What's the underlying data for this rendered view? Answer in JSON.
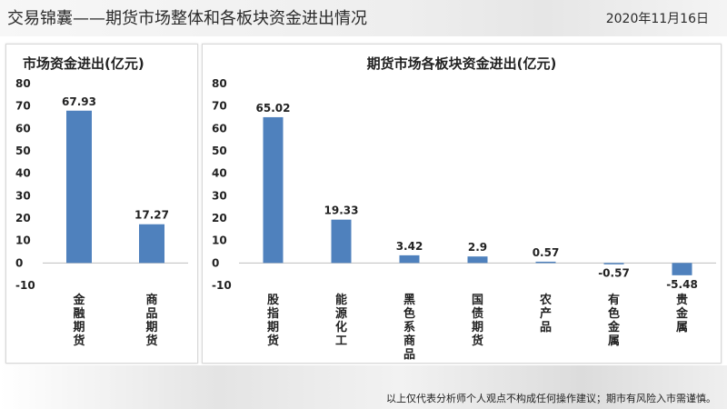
{
  "header": {
    "title": "交易锦囊——期货市场整体和各板块资金进出情况",
    "date": "2020年11月16日"
  },
  "footer": {
    "disclaimer": "以上仅代表分析师个人观点不构成任何操作建议；期市有风险入市需谨慎。"
  },
  "colors": {
    "bar": "#4f81bd",
    "axis": "#bfbfbf"
  },
  "chart_data": [
    {
      "type": "bar",
      "title": "市场资金进出(亿元)",
      "categories": [
        "金融期货",
        "商品期货"
      ],
      "values": [
        67.93,
        17.27
      ],
      "data_labels": [
        "67.93",
        "17.27"
      ],
      "ylim": [
        -10,
        80
      ],
      "yticks": [
        80,
        70,
        60,
        50,
        40,
        30,
        20,
        10,
        0,
        -10
      ],
      "grid": false,
      "legend": "none"
    },
    {
      "type": "bar",
      "title": "期货市场各板块资金进出(亿元)",
      "categories": [
        "股指期货",
        "能源化工",
        "黑色系商品",
        "国债期货",
        "农产品",
        "有色金属",
        "贵金属"
      ],
      "values": [
        65.02,
        19.33,
        3.42,
        2.9,
        0.57,
        -0.57,
        -5.48
      ],
      "data_labels": [
        "65.02",
        "19.33",
        "3.42",
        "2.9",
        "0.57",
        "-0.57",
        "-5.48"
      ],
      "ylim": [
        -10,
        80
      ],
      "yticks": [
        80,
        70,
        60,
        50,
        40,
        30,
        20,
        10,
        0,
        -10
      ],
      "grid": false,
      "legend": "none"
    }
  ]
}
